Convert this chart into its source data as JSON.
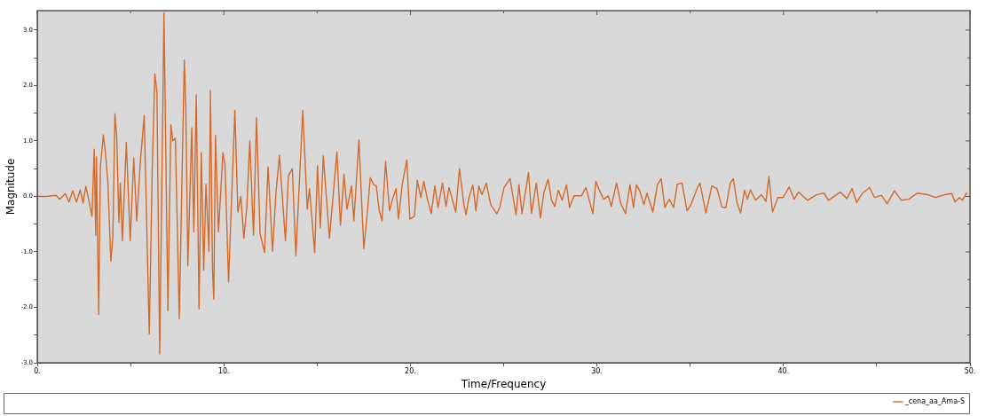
{
  "chart_data": {
    "type": "line",
    "xlabel": "Time/Frequency",
    "ylabel": "Magnitude",
    "xlim": [
      0,
      50
    ],
    "ylim": [
      -3,
      3.35
    ],
    "xticks": [
      {
        "value": 0,
        "label": "0."
      },
      {
        "value": 5,
        "label": null
      },
      {
        "value": 10,
        "label": "10."
      },
      {
        "value": 15,
        "label": null
      },
      {
        "value": 20,
        "label": "20."
      },
      {
        "value": 25,
        "label": null
      },
      {
        "value": 30,
        "label": "30."
      },
      {
        "value": 35,
        "label": null
      },
      {
        "value": 40,
        "label": "40."
      },
      {
        "value": 45,
        "label": null
      },
      {
        "value": 50,
        "label": "50."
      }
    ],
    "yticks": [
      {
        "value": -3,
        "label": "-3.0"
      },
      {
        "value": -2.5,
        "label": null
      },
      {
        "value": -2,
        "label": "-2.0"
      },
      {
        "value": -1.5,
        "label": null
      },
      {
        "value": -1,
        "label": "-1.0"
      },
      {
        "value": -0.5,
        "label": null
      },
      {
        "value": 0,
        "label": "0.0"
      },
      {
        "value": 0.5,
        "label": null
      },
      {
        "value": 1,
        "label": "1.0"
      },
      {
        "value": 1.5,
        "label": null
      },
      {
        "value": 2,
        "label": "2.0"
      },
      {
        "value": 2.5,
        "label": null
      },
      {
        "value": 3,
        "label": "3.0"
      }
    ],
    "grid": false,
    "legend": "bottom right",
    "marker": "none",
    "line_style": "solid",
    "series": [
      {
        "name": "_cena_aa_Ama-S",
        "color": "#d4692a",
        "x": [
          0,
          0.5,
          1.0,
          1.2,
          1.5,
          1.7,
          1.9,
          2.1,
          2.3,
          2.45,
          2.6,
          2.75,
          2.93,
          3.05,
          3.13,
          3.17,
          3.29,
          3.38,
          3.54,
          3.65,
          3.78,
          3.94,
          4.05,
          4.16,
          4.26,
          4.37,
          4.45,
          4.56,
          4.77,
          4.98,
          5.17,
          5.33,
          5.52,
          5.73,
          6.0,
          6.16,
          6.3,
          6.41,
          6.56,
          6.79,
          7.0,
          7.16,
          7.27,
          7.4,
          7.61,
          7.8,
          7.88,
          7.96,
          8.07,
          8.28,
          8.39,
          8.52,
          8.67,
          8.79,
          8.92,
          9.04,
          9.2,
          9.28,
          9.39,
          9.46,
          9.55,
          9.71,
          9.95,
          10.06,
          10.25,
          10.59,
          10.75,
          10.91,
          11.07,
          11.23,
          11.39,
          11.59,
          11.75,
          11.94,
          12.18,
          12.37,
          12.61,
          12.79,
          12.98,
          13.3,
          13.46,
          13.67,
          13.86,
          14.23,
          14.47,
          14.59,
          14.87,
          15.02,
          15.17,
          15.33,
          15.66,
          16.06,
          16.25,
          16.44,
          16.6,
          16.84,
          16.97,
          17.24,
          17.5,
          17.66,
          17.85,
          18.04,
          18.17,
          18.33,
          18.48,
          18.67,
          18.88,
          19.04,
          19.23,
          19.36,
          19.56,
          19.81,
          19.97,
          20.21,
          20.37,
          20.56,
          20.72,
          20.91,
          21.12,
          21.31,
          21.48,
          21.72,
          21.91,
          22.07,
          22.43,
          22.63,
          22.87,
          22.98,
          23.14,
          23.35,
          23.51,
          23.67,
          23.83,
          24.07,
          24.31,
          24.63,
          24.79,
          25.02,
          25.34,
          25.66,
          25.82,
          25.98,
          26.33,
          26.49,
          26.75,
          26.97,
          27.15,
          27.38,
          27.57,
          27.74,
          27.93,
          28.13,
          28.37,
          28.53,
          28.77,
          29.17,
          29.41,
          29.78,
          29.94,
          30.13,
          30.37,
          30.61,
          30.77,
          31.05,
          31.28,
          31.53,
          31.77,
          31.96,
          32.12,
          32.28,
          32.52,
          32.68,
          33.0,
          33.24,
          33.44,
          33.64,
          33.88,
          34.11,
          34.31,
          34.56,
          34.83,
          35.04,
          35.39,
          35.52,
          35.84,
          36.16,
          36.43,
          36.7,
          36.91,
          37.15,
          37.31,
          37.5,
          37.7,
          37.91,
          38.07,
          38.23,
          38.5,
          38.82,
          39.06,
          39.22,
          39.41,
          39.7,
          39.98,
          40.3,
          40.57,
          40.81,
          41.29,
          41.77,
          42.17,
          42.41,
          43.05,
          43.4,
          43.68,
          43.92,
          44.24,
          44.61,
          44.88,
          45.25,
          45.56,
          45.95,
          46.32,
          46.71,
          47.19,
          47.75,
          48.15,
          48.63,
          49.03,
          49.19,
          49.43,
          49.59,
          49.83
        ],
        "values": [
          0,
          0,
          0.02,
          -0.05,
          0.05,
          -0.1,
          0.1,
          -0.1,
          0.12,
          -0.12,
          0.18,
          -0.05,
          -0.36,
          0.85,
          -0.7,
          0.71,
          -2.13,
          0.53,
          1.11,
          0.79,
          0.27,
          -1.17,
          -0.72,
          1.49,
          1.05,
          -0.47,
          0.24,
          -0.8,
          0.97,
          -0.8,
          0.69,
          -0.44,
          0.61,
          1.46,
          -2.48,
          0.47,
          2.21,
          1.89,
          -2.84,
          3.31,
          -2.06,
          1.29,
          1.0,
          1.05,
          -2.21,
          1.1,
          2.46,
          1.63,
          -1.25,
          1.24,
          -0.64,
          1.83,
          -2.03,
          0.79,
          -1.33,
          0.22,
          -0.99,
          1.91,
          -1.3,
          -1.85,
          1.1,
          -0.64,
          0.79,
          0.58,
          -1.54,
          1.55,
          -0.28,
          0.0,
          -0.75,
          -0.2,
          1.0,
          -0.7,
          1.42,
          -0.67,
          -1.01,
          0.53,
          -0.99,
          0.06,
          0.74,
          -0.8,
          0.37,
          0.5,
          -1.07,
          1.55,
          -0.23,
          0.14,
          -1.01,
          0.55,
          -0.57,
          0.73,
          -0.75,
          0.8,
          -0.52,
          0.4,
          -0.23,
          0.19,
          -0.44,
          1.02,
          -0.94,
          -0.41,
          0.34,
          0.21,
          0.19,
          -0.26,
          -0.44,
          0.63,
          -0.26,
          -0.05,
          0.14,
          -0.41,
          0.21,
          0.66,
          -0.41,
          -0.36,
          0.29,
          -0.02,
          0.27,
          -0.05,
          -0.31,
          0.19,
          -0.2,
          0.24,
          -0.18,
          0.16,
          -0.28,
          0.5,
          -0.15,
          -0.33,
          -0.02,
          0.21,
          -0.26,
          0.19,
          0.03,
          0.24,
          -0.15,
          -0.31,
          -0.2,
          0.16,
          0.32,
          -0.33,
          0.21,
          -0.31,
          0.43,
          -0.31,
          0.24,
          -0.39,
          0.06,
          0.31,
          -0.07,
          -0.18,
          0.11,
          -0.07,
          0.21,
          -0.2,
          0.01,
          0.01,
          0.16,
          -0.31,
          0.27,
          0.11,
          -0.05,
          0.01,
          -0.18,
          0.24,
          -0.13,
          -0.31,
          0.21,
          -0.2,
          0.21,
          0.11,
          -0.15,
          0.06,
          -0.28,
          0.21,
          0.32,
          -0.2,
          -0.05,
          -0.2,
          0.22,
          0.24,
          -0.26,
          -0.15,
          0.16,
          0.24,
          -0.3,
          0.19,
          0.14,
          -0.19,
          -0.2,
          0.24,
          0.32,
          -0.1,
          -0.3,
          0.11,
          -0.05,
          0.12,
          -0.07,
          0.03,
          -0.09,
          0.36,
          -0.28,
          -0.02,
          -0.02,
          0.17,
          -0.05,
          0.08,
          -0.07,
          0.03,
          0.06,
          -0.07,
          0.08,
          -0.04,
          0.14,
          -0.11,
          0.06,
          0.16,
          -0.02,
          0.02,
          -0.13,
          0.1,
          -0.07,
          -0.05,
          0.06,
          0.03,
          -0.02,
          0.03,
          0.05,
          -0.1,
          -0.02,
          -0.07,
          0.07
        ]
      }
    ]
  }
}
